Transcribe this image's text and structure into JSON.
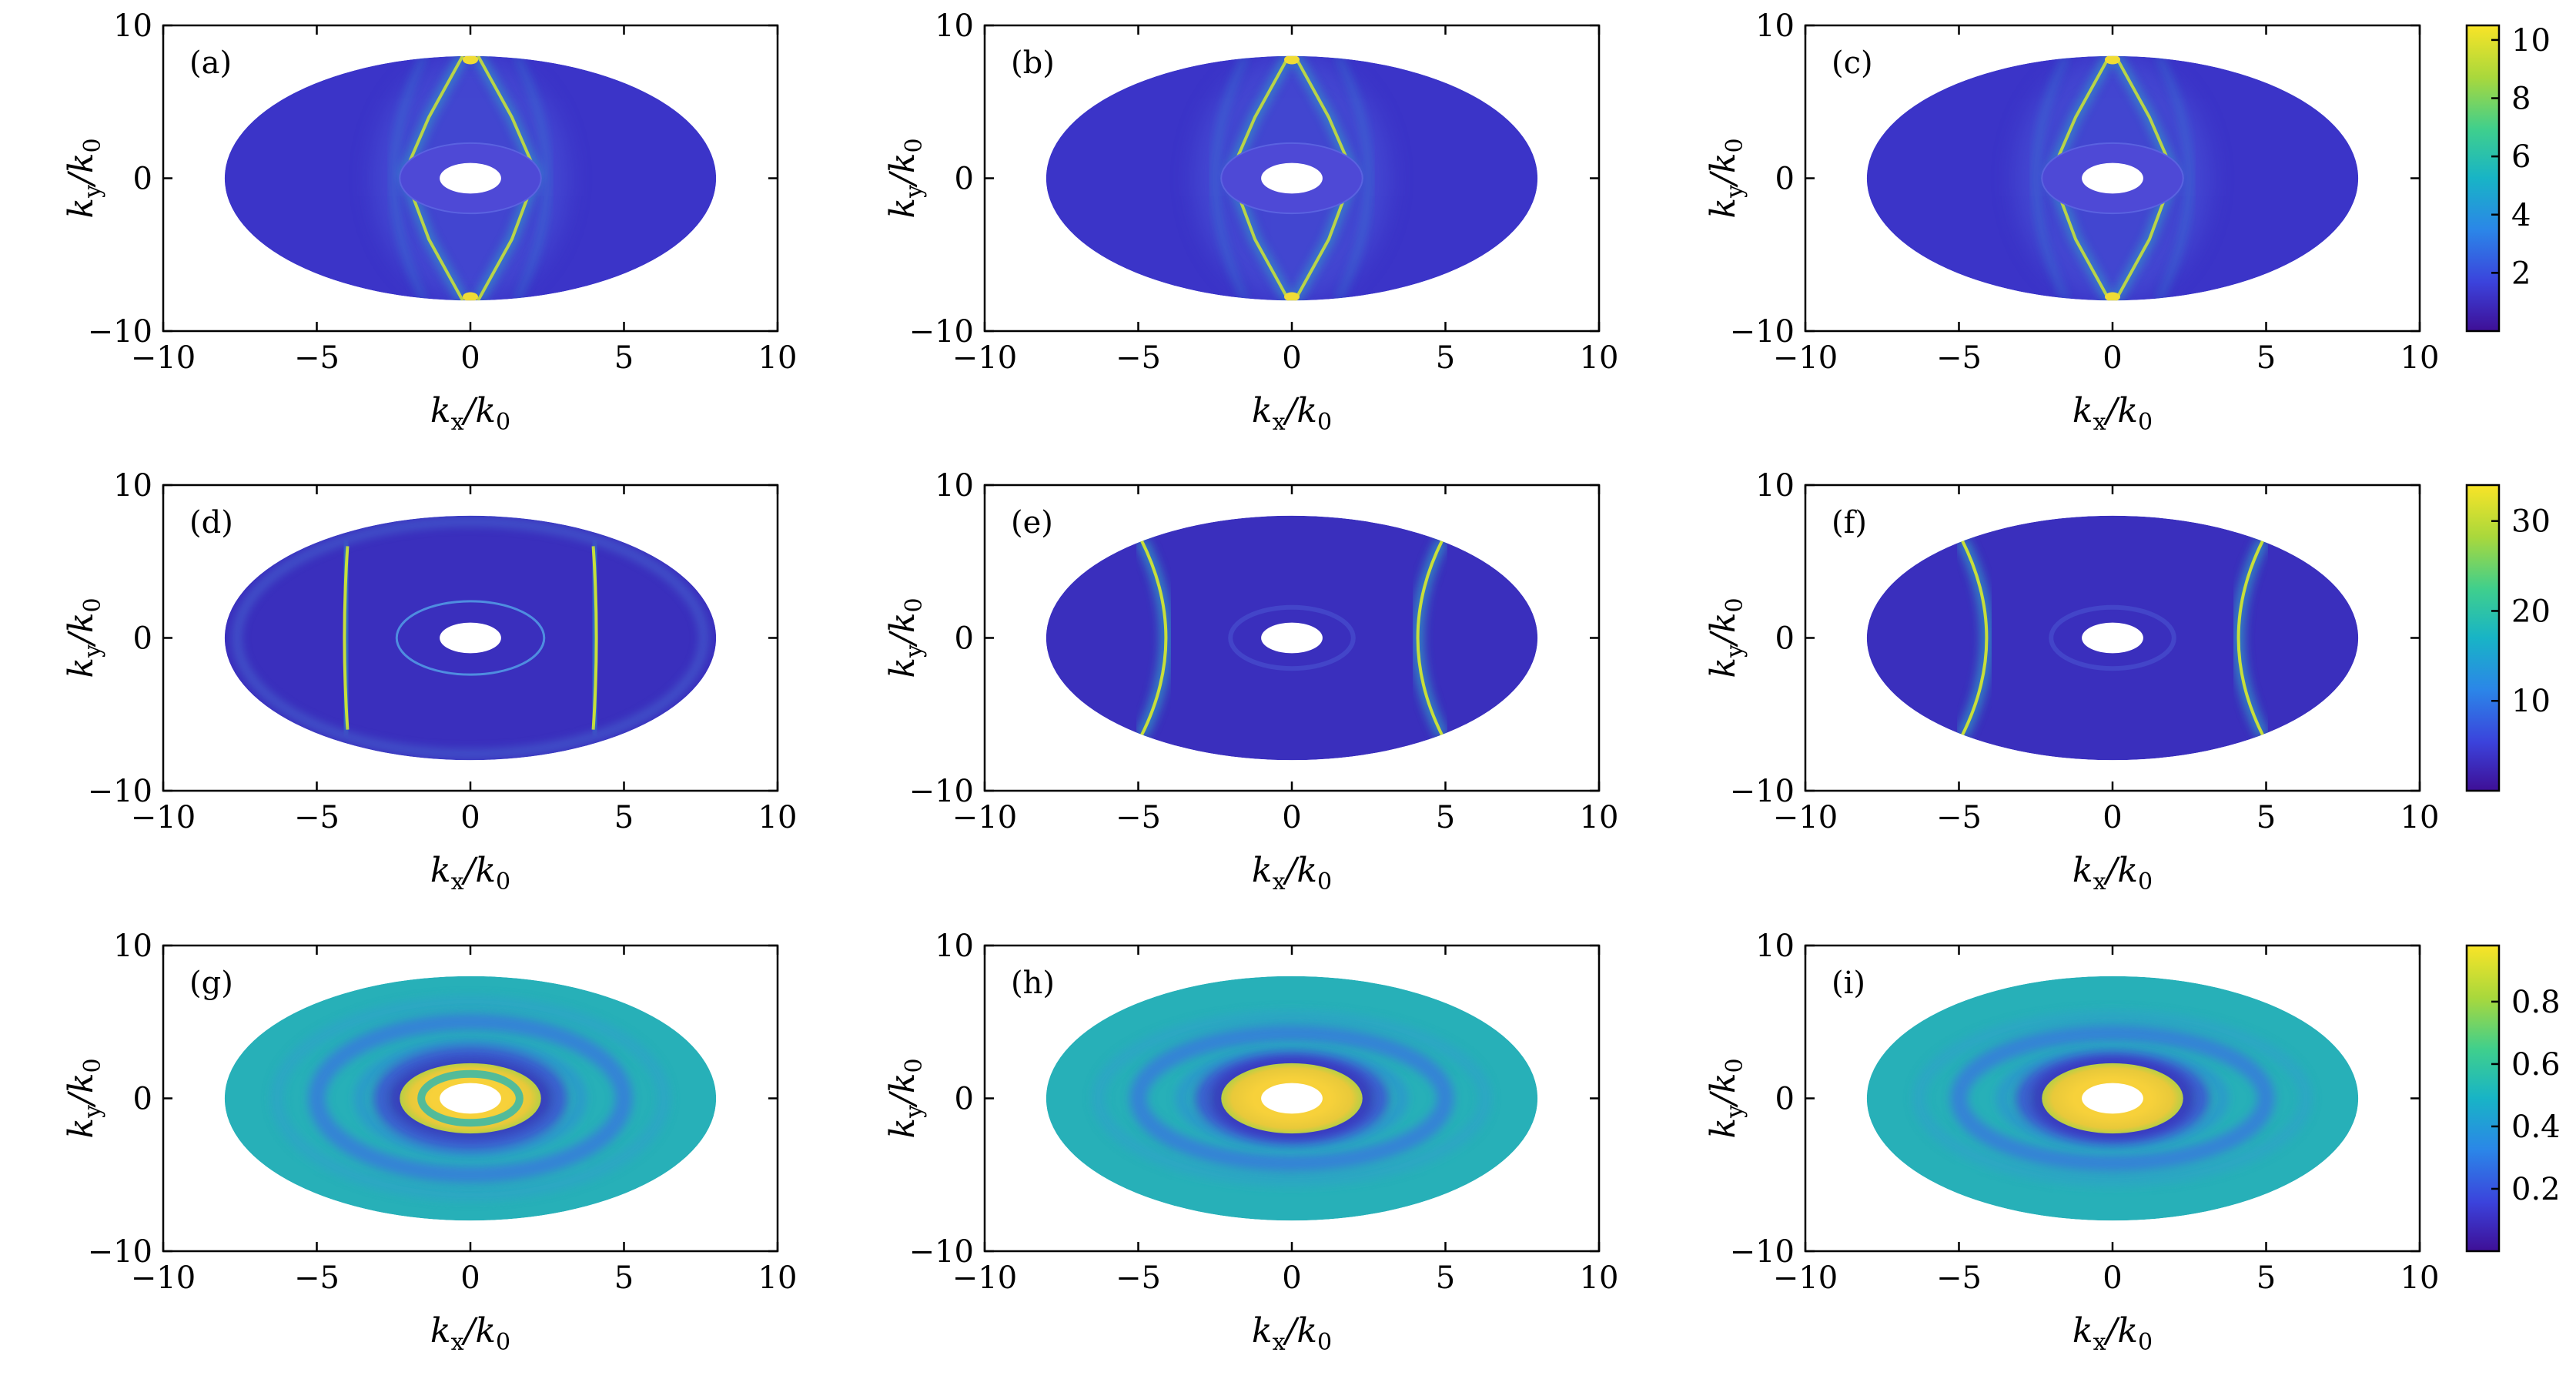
{
  "figure": {
    "panel_labels": [
      "(a)",
      "(b)",
      "(c)",
      "(d)",
      "(e)",
      "(f)",
      "(g)",
      "(h)",
      "(i)"
    ]
  },
  "chart_data": [
    {
      "type": "heatmap",
      "panel": "(a)",
      "xlabel": "kx/k0",
      "ylabel": "ky/k0",
      "xlim": [
        -10,
        10
      ],
      "ylim": [
        -10,
        10
      ],
      "xticks": [
        "−10",
        "−5",
        "0",
        "5",
        "10"
      ],
      "yticks": [
        "10",
        "0",
        "−10"
      ],
      "colorbar": {
        "ticks": [
          "2",
          "4",
          "6",
          "8",
          "10"
        ],
        "range": [
          0,
          10.5
        ]
      }
    },
    {
      "type": "heatmap",
      "panel": "(b)",
      "xlabel": "kx/k0",
      "ylabel": "ky/k0",
      "xlim": [
        -10,
        10
      ],
      "ylim": [
        -10,
        10
      ],
      "xticks": [
        "−10",
        "−5",
        "0",
        "5",
        "10"
      ],
      "yticks": [
        "10",
        "0",
        "−10"
      ],
      "colorbar": {
        "ticks": [
          "2",
          "4",
          "6",
          "8",
          "10"
        ],
        "range": [
          0,
          10.5
        ]
      }
    },
    {
      "type": "heatmap",
      "panel": "(c)",
      "xlabel": "kx/k0",
      "ylabel": "ky/k0",
      "xlim": [
        -10,
        10
      ],
      "ylim": [
        -10,
        10
      ],
      "xticks": [
        "−10",
        "−5",
        "0",
        "5",
        "10"
      ],
      "yticks": [
        "10",
        "0",
        "−10"
      ],
      "colorbar": {
        "ticks": [
          "2",
          "4",
          "6",
          "8",
          "10"
        ],
        "range": [
          0,
          10.5
        ]
      }
    },
    {
      "type": "heatmap",
      "panel": "(d)",
      "xlabel": "kx/k0",
      "ylabel": "ky/k0",
      "xlim": [
        -10,
        10
      ],
      "ylim": [
        -10,
        10
      ],
      "xticks": [
        "−10",
        "−5",
        "0",
        "5",
        "10"
      ],
      "yticks": [
        "10",
        "0",
        "−10"
      ],
      "colorbar": {
        "ticks": [
          "10",
          "20",
          "30"
        ],
        "range": [
          0,
          34
        ]
      }
    },
    {
      "type": "heatmap",
      "panel": "(e)",
      "xlabel": "kx/k0",
      "ylabel": "ky/k0",
      "xlim": [
        -10,
        10
      ],
      "ylim": [
        -10,
        10
      ],
      "xticks": [
        "−10",
        "−5",
        "0",
        "5",
        "10"
      ],
      "yticks": [
        "10",
        "0",
        "−10"
      ],
      "colorbar": {
        "ticks": [
          "10",
          "20",
          "30"
        ],
        "range": [
          0,
          34
        ]
      }
    },
    {
      "type": "heatmap",
      "panel": "(f)",
      "xlabel": "kx/k0",
      "ylabel": "ky/k0",
      "xlim": [
        -10,
        10
      ],
      "ylim": [
        -10,
        10
      ],
      "xticks": [
        "−10",
        "−5",
        "0",
        "5",
        "10"
      ],
      "yticks": [
        "10",
        "0",
        "−10"
      ],
      "colorbar": {
        "ticks": [
          "10",
          "20",
          "30"
        ],
        "range": [
          0,
          34
        ]
      }
    },
    {
      "type": "heatmap",
      "panel": "(g)",
      "xlabel": "kx/k0",
      "ylabel": "ky/k0",
      "xlim": [
        -10,
        10
      ],
      "ylim": [
        -10,
        10
      ],
      "xticks": [
        "−10",
        "−5",
        "0",
        "5",
        "10"
      ],
      "yticks": [
        "10",
        "0",
        "−10"
      ],
      "colorbar": {
        "ticks": [
          "0.2",
          "0.4",
          "0.6",
          "0.8"
        ],
        "range": [
          0,
          0.98
        ]
      }
    },
    {
      "type": "heatmap",
      "panel": "(h)",
      "xlabel": "kx/k0",
      "ylabel": "ky/k0",
      "xlim": [
        -10,
        10
      ],
      "ylim": [
        -10,
        10
      ],
      "xticks": [
        "−10",
        "−5",
        "0",
        "5",
        "10"
      ],
      "yticks": [
        "10",
        "0",
        "−10"
      ],
      "colorbar": {
        "ticks": [
          "0.2",
          "0.4",
          "0.6",
          "0.8"
        ],
        "range": [
          0,
          0.98
        ]
      }
    },
    {
      "type": "heatmap",
      "panel": "(i)",
      "xlabel": "kx/k0",
      "ylabel": "ky/k0",
      "xlim": [
        -10,
        10
      ],
      "ylim": [
        -10,
        10
      ],
      "xticks": [
        "−10",
        "−5",
        "0",
        "5",
        "10"
      ],
      "yticks": [
        "10",
        "0",
        "−10"
      ],
      "colorbar": {
        "ticks": [
          "0.2",
          "0.4",
          "0.6",
          "0.8"
        ],
        "range": [
          0,
          0.98
        ]
      }
    }
  ],
  "colors": {
    "base_a": "#3b34c8",
    "ring_a": "#4e49d6",
    "bright_line": "#c7df3a",
    "mid_line": "#2fa2c6",
    "base_d": "#3a2fbd",
    "base_g": "#27b0b8",
    "band_g": "#3a6fe0",
    "ring_yellow": "#f4cf33",
    "viridis": [
      "#3e0f96",
      "#3b43dc",
      "#2b86e8",
      "#18b4c6",
      "#3fcf8d",
      "#a9d83c",
      "#f9e427"
    ]
  }
}
